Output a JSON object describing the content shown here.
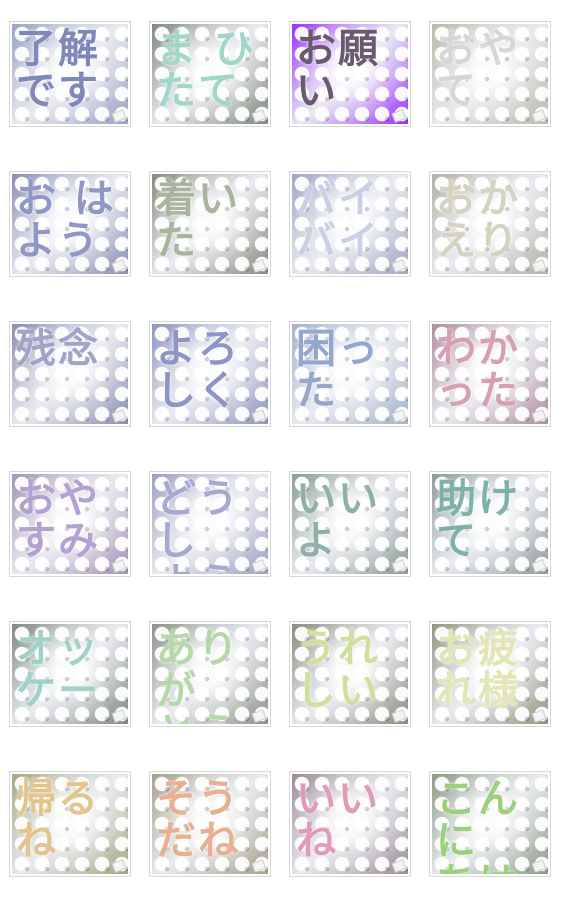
{
  "stickers": [
    {
      "text": "了解\nです",
      "color": "#7f89b9",
      "bg": "#9aa2c6"
    },
    {
      "text": "ま ひ\nたて",
      "color": "#9fd7c9",
      "bg": "#7f8a7c"
    },
    {
      "text": "お願\nい",
      "color": "#6a5a6f",
      "bg": "#9b30ff"
    },
    {
      "text": "おやて",
      "color": "#d6d6d6",
      "bg": "#b8bca8"
    },
    {
      "text": "お は\nよう",
      "color": "#8f97c6",
      "bg": "#8b8fb4"
    },
    {
      "text": "着い\nた",
      "color": "#a8b49c",
      "bg": "#888c7e"
    },
    {
      "text": "バイ\nバイ",
      "color": "#c8d0e6",
      "bg": "#a1a7c4"
    },
    {
      "text": "おか\nえり",
      "color": "#d6d2c0",
      "bg": "#b4b2a6"
    },
    {
      "text": "残念",
      "color": "#9fa4c8",
      "bg": "#8a8eb2"
    },
    {
      "text": "よろ\nしく",
      "color": "#8c95c6",
      "bg": "#8f95c0"
    },
    {
      "text": "困っ\nた",
      "color": "#93a6cc",
      "bg": "#a4b2cc"
    },
    {
      "text": "わか\nった",
      "color": "#d6a0b2",
      "bg": "#b08ea0"
    },
    {
      "text": "おや\nすみ",
      "color": "#b3a1cf",
      "bg": "#a493b8"
    },
    {
      "text": "どうし\nよう",
      "color": "#a5a9d2",
      "bg": "#9da1c4"
    },
    {
      "text": "いい\nよ",
      "color": "#8fb0a7",
      "bg": "#8c9c98"
    },
    {
      "text": "助け\nて",
      "color": "#7fb1a8",
      "bg": "#8e9c9c"
    },
    {
      "text": "オッ\nケー",
      "color": "#9fd2c6",
      "bg": "#7f8a86"
    },
    {
      "text": "ありが\nとう",
      "color": "#b6d8a8",
      "bg": "#8c9488"
    },
    {
      "text": "うれ\nしい",
      "color": "#cfe09c",
      "bg": "#8a8e7c"
    },
    {
      "text": "お疲\nれ様",
      "color": "#e2e6b6",
      "bg": "#94957f"
    },
    {
      "text": "帰る\nね",
      "color": "#e2c48c",
      "bg": "#a2a884"
    },
    {
      "text": "そう\nだね",
      "color": "#e8b090",
      "bg": "#a8a08c"
    },
    {
      "text": "いい\nね",
      "color": "#e09cb6",
      "bg": "#9c8c98"
    },
    {
      "text": "こんに\nちは",
      "color": "#9cd07a",
      "bg": "#8c9c84"
    }
  ]
}
